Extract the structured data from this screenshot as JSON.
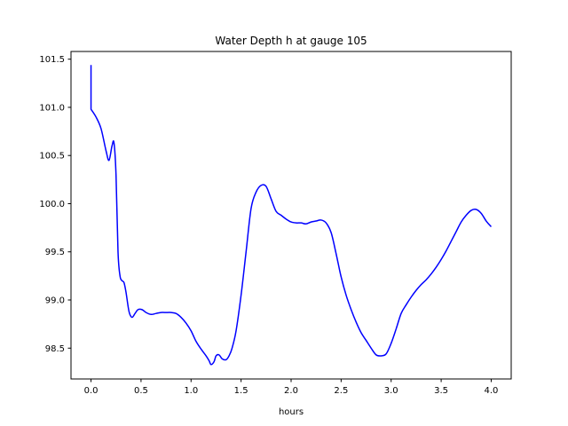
{
  "chart_data": {
    "type": "line",
    "title": "Water Depth h at gauge 105",
    "xlabel": "hours",
    "ylabel": "",
    "xlim": [
      -0.2,
      4.2
    ],
    "ylim": [
      98.18,
      101.58
    ],
    "xticks": [
      0.0,
      0.5,
      1.0,
      1.5,
      2.0,
      2.5,
      3.0,
      3.5,
      4.0
    ],
    "xtick_labels": [
      "0.0",
      "0.5",
      "1.0",
      "1.5",
      "2.0",
      "2.5",
      "3.0",
      "3.5",
      "4.0"
    ],
    "yticks": [
      98.5,
      99.0,
      99.5,
      100.0,
      100.5,
      101.0,
      101.5
    ],
    "ytick_labels": [
      "98.5",
      "99.0",
      "99.5",
      "100.0",
      "100.5",
      "101.0",
      "101.5"
    ],
    "grid": false,
    "color": "#0000ff",
    "series": [
      {
        "x": [
          0.0,
          0.0,
          0.0,
          0.05,
          0.1,
          0.15,
          0.18,
          0.21,
          0.23,
          0.25,
          0.27,
          0.29,
          0.31,
          0.33,
          0.35,
          0.38,
          0.41,
          0.44,
          0.47,
          0.51,
          0.55,
          0.6,
          0.65,
          0.7,
          0.75,
          0.8,
          0.85,
          0.9,
          0.95,
          1.0,
          1.05,
          1.1,
          1.15,
          1.18,
          1.2,
          1.23,
          1.25,
          1.28,
          1.31,
          1.35,
          1.38,
          1.41,
          1.45,
          1.5,
          1.55,
          1.6,
          1.65,
          1.7,
          1.75,
          1.8,
          1.85,
          1.9,
          1.95,
          2.0,
          2.05,
          2.1,
          2.15,
          2.2,
          2.25,
          2.3,
          2.35,
          2.4,
          2.45,
          2.5,
          2.55,
          2.6,
          2.65,
          2.7,
          2.75,
          2.8,
          2.85,
          2.9,
          2.95,
          3.0,
          3.05,
          3.1,
          3.15,
          3.2,
          3.25,
          3.3,
          3.35,
          3.4,
          3.45,
          3.5,
          3.55,
          3.6,
          3.65,
          3.7,
          3.75,
          3.8,
          3.85,
          3.9,
          3.95,
          4.0
        ],
        "y": [
          101.44,
          100.98,
          100.98,
          100.9,
          100.78,
          100.55,
          100.45,
          100.6,
          100.63,
          100.3,
          99.5,
          99.25,
          99.2,
          99.18,
          99.08,
          98.88,
          98.82,
          98.86,
          98.9,
          98.9,
          98.87,
          98.85,
          98.86,
          98.87,
          98.87,
          98.87,
          98.86,
          98.82,
          98.76,
          98.68,
          98.57,
          98.49,
          98.42,
          98.37,
          98.33,
          98.36,
          98.42,
          98.43,
          98.39,
          98.38,
          98.42,
          98.5,
          98.68,
          99.05,
          99.5,
          99.95,
          100.12,
          100.19,
          100.18,
          100.05,
          99.92,
          99.88,
          99.84,
          99.81,
          99.8,
          99.8,
          99.79,
          99.81,
          99.82,
          99.83,
          99.8,
          99.7,
          99.48,
          99.24,
          99.05,
          98.9,
          98.77,
          98.66,
          98.58,
          98.5,
          98.43,
          98.42,
          98.44,
          98.55,
          98.7,
          98.86,
          98.95,
          99.03,
          99.1,
          99.16,
          99.21,
          99.27,
          99.34,
          99.42,
          99.51,
          99.61,
          99.71,
          99.81,
          99.88,
          99.93,
          99.94,
          99.9,
          99.82,
          99.76
        ]
      }
    ]
  }
}
